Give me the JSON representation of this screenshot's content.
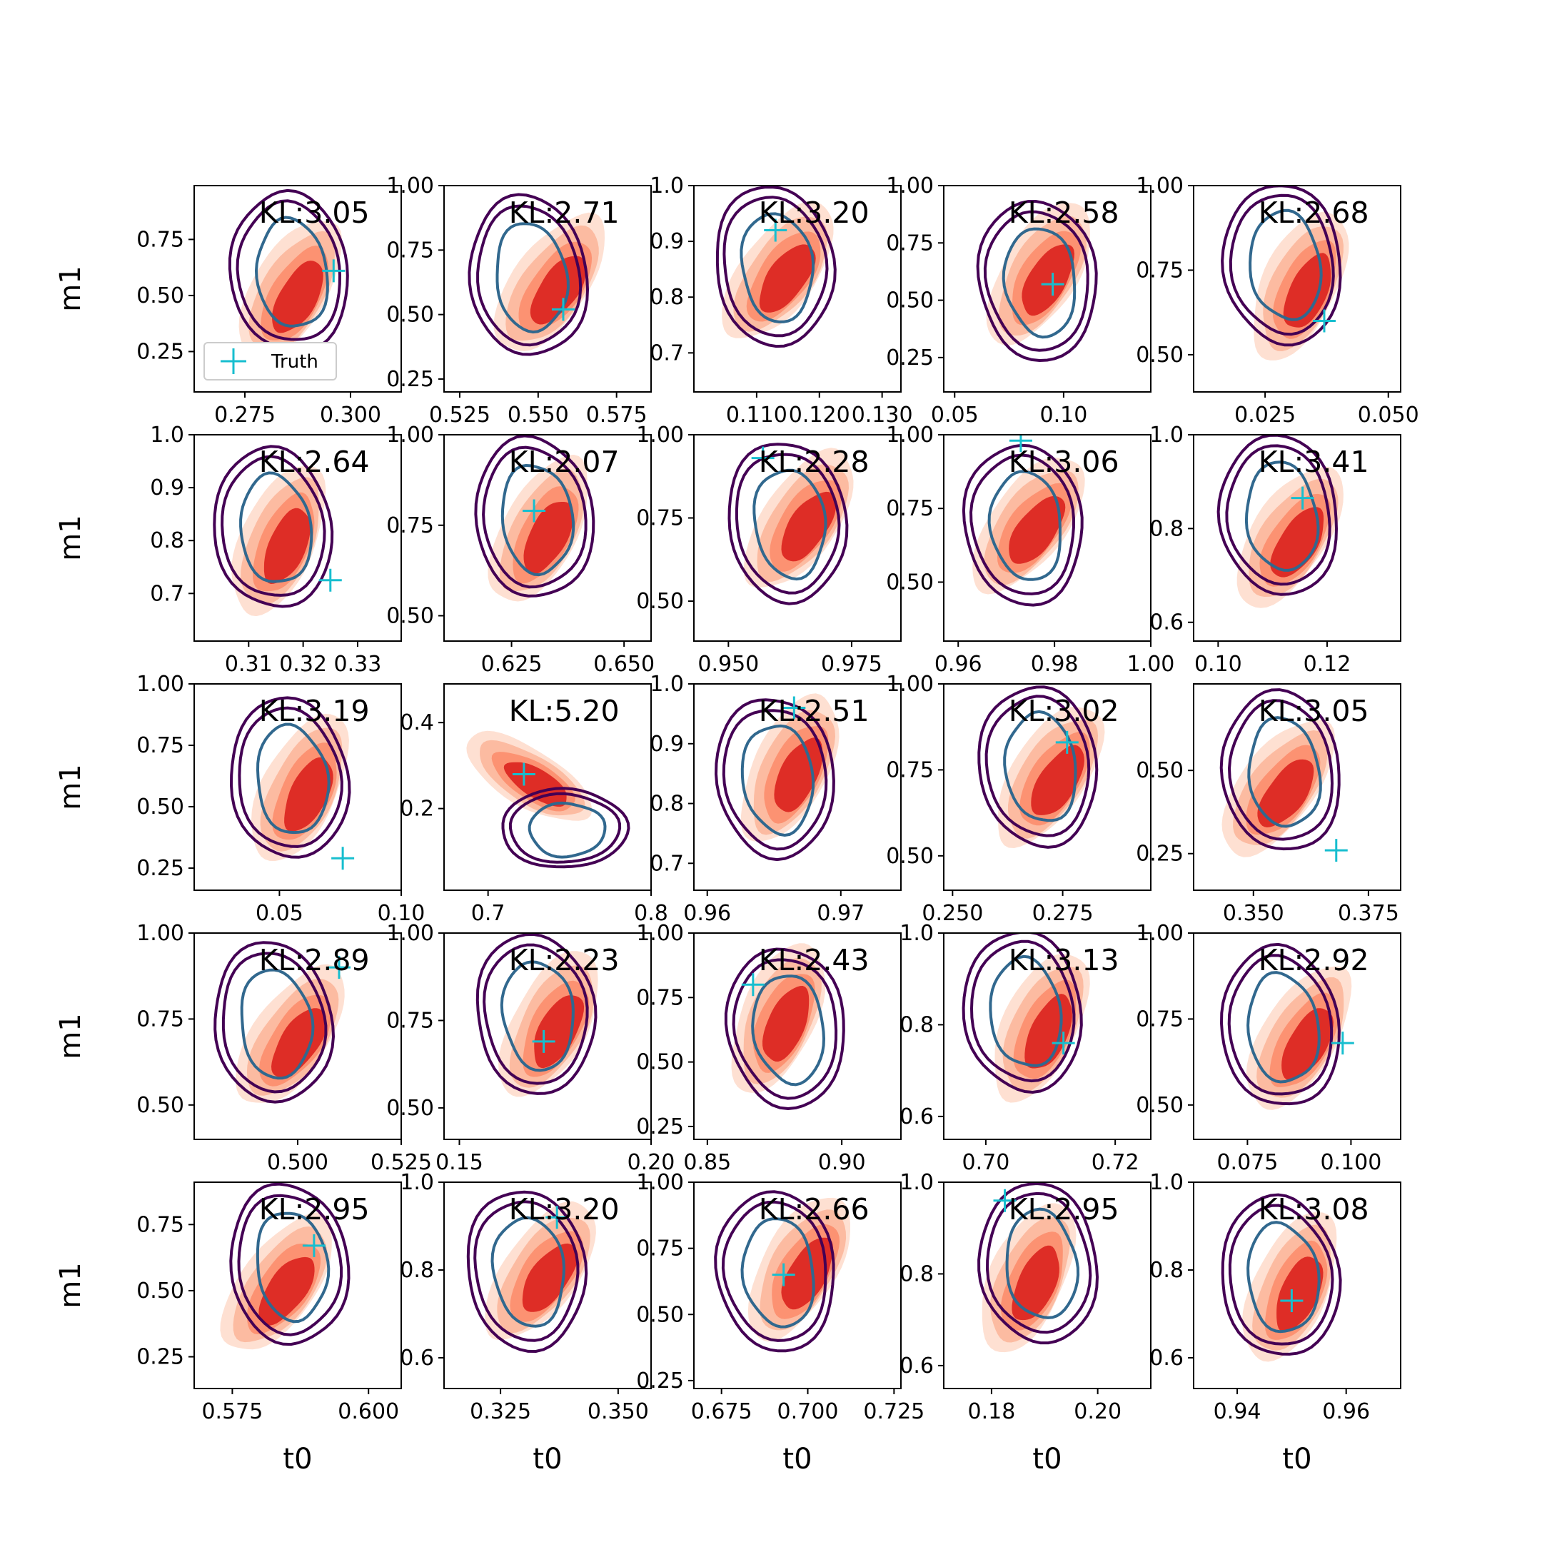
{
  "chart_data": {
    "type": "contour",
    "grid": [
      5,
      5
    ],
    "xlabel": "t0",
    "ylabel": "m1",
    "legend": {
      "label": "Truth",
      "placement": "lower-left of first panel"
    },
    "colors": {
      "fill_levels": [
        "#fee0d2",
        "#fcbba1",
        "#fc9272",
        "#de2d26",
        "#d32020"
      ],
      "contour_outer": "#440154",
      "contour_inner": "#31688e",
      "truth": "#17becf"
    },
    "panels": [
      {
        "kl": "KL:3.05",
        "truth": [
          0.296,
          0.61
        ],
        "xlim": [
          0.263,
          0.312
        ],
        "ylim": [
          0.07,
          0.99
        ],
        "xticks": [
          "0.275",
          "0.300"
        ],
        "yticks": [
          "0.25",
          "0.50",
          "0.75"
        ],
        "yvals": [
          0.25,
          0.5,
          0.75
        ],
        "legend": true
      },
      {
        "kl": "KL:2.71",
        "truth": [
          0.558,
          0.52
        ],
        "xlim": [
          0.52,
          0.586
        ],
        "ylim": [
          0.2,
          1.0
        ],
        "xticks": [
          "0.525",
          "0.550",
          "0.575"
        ],
        "yticks": [
          "0.25",
          "0.50",
          "0.75",
          "1.00"
        ],
        "yvals": [
          0.25,
          0.5,
          0.75,
          1.0
        ]
      },
      {
        "kl": "KL:3.20",
        "truth": [
          0.113,
          0.92
        ],
        "xlim": [
          0.1,
          0.133
        ],
        "ylim": [
          0.63,
          1.0
        ],
        "xticks": [
          "0.110",
          "0.120",
          "0.130"
        ],
        "yticks": [
          "0.7",
          "0.8",
          "0.9",
          "1.0"
        ],
        "yvals": [
          0.7,
          0.8,
          0.9,
          1.0
        ]
      },
      {
        "kl": "KL:2.58",
        "truth": [
          0.095,
          0.57
        ],
        "xlim": [
          0.045,
          0.14
        ],
        "ylim": [
          0.1,
          1.0
        ],
        "xticks": [
          "0.05",
          "0.10"
        ],
        "yticks": [
          "0.25",
          "0.50",
          "0.75",
          "1.00"
        ],
        "yvals": [
          0.25,
          0.5,
          0.75,
          1.0
        ]
      },
      {
        "kl": "KL:2.68",
        "truth": [
          0.037,
          0.6
        ],
        "xlim": [
          0.0105,
          0.0525
        ],
        "ylim": [
          0.39,
          1.0
        ],
        "xticks": [
          "0.025",
          "0.050"
        ],
        "yticks": [
          "0.50",
          "0.75",
          "1.00"
        ],
        "yvals": [
          0.5,
          0.75,
          1.0
        ]
      },
      {
        "kl": "KL:2.64",
        "truth": [
          0.325,
          0.725
        ],
        "xlim": [
          0.3,
          0.338
        ],
        "ylim": [
          0.61,
          1.0
        ],
        "xticks": [
          "0.31",
          "0.32",
          "0.33"
        ],
        "yticks": [
          "0.7",
          "0.8",
          "0.9",
          "1.0"
        ],
        "yvals": [
          0.7,
          0.8,
          0.9,
          1.0
        ]
      },
      {
        "kl": "KL:2.07",
        "truth": [
          0.63,
          0.79
        ],
        "xlim": [
          0.61,
          0.656
        ],
        "ylim": [
          0.43,
          1.0
        ],
        "xticks": [
          "0.625",
          "0.650"
        ],
        "yticks": [
          "0.50",
          "0.75",
          "1.00"
        ],
        "yvals": [
          0.5,
          0.75,
          1.0
        ]
      },
      {
        "kl": "KL:2.28",
        "truth": [
          0.957,
          0.93
        ],
        "xlim": [
          0.943,
          0.985
        ],
        "ylim": [
          0.38,
          1.0
        ],
        "xticks": [
          "0.950",
          "0.975"
        ],
        "yticks": [
          "0.50",
          "0.75",
          "1.00"
        ],
        "yvals": [
          0.5,
          0.75,
          1.0
        ]
      },
      {
        "kl": "KL:3.06",
        "truth": [
          0.973,
          0.98
        ],
        "xlim": [
          0.957,
          1.0
        ],
        "ylim": [
          0.3,
          1.0
        ],
        "xticks": [
          "0.96",
          "0.98",
          "1.00"
        ],
        "yticks": [
          "0.50",
          "0.75",
          "1.00"
        ],
        "yvals": [
          0.5,
          0.75,
          1.0
        ]
      },
      {
        "kl": "KL:3.41",
        "truth": [
          0.1155,
          0.865
        ],
        "xlim": [
          0.0955,
          0.1335
        ],
        "ylim": [
          0.56,
          1.0
        ],
        "xticks": [
          "0.10",
          "0.12"
        ],
        "yticks": [
          "0.6",
          "0.8",
          "1.0"
        ],
        "yvals": [
          0.6,
          0.8,
          1.0
        ]
      },
      {
        "kl": "KL:3.19",
        "truth": [
          0.076,
          0.29
        ],
        "xlim": [
          0.015,
          0.1
        ],
        "ylim": [
          0.16,
          1.0
        ],
        "xticks": [
          "0.05",
          "0.10"
        ],
        "yticks": [
          "0.25",
          "0.50",
          "0.75",
          "1.00"
        ],
        "yvals": [
          0.25,
          0.5,
          0.75,
          1.0
        ]
      },
      {
        "kl": "KL:5.20",
        "truth": [
          0.722,
          0.28
        ],
        "xlim": [
          0.673,
          0.8
        ],
        "ylim": [
          0.01,
          0.49
        ],
        "xticks": [
          "0.7",
          "0.8"
        ],
        "yticks": [
          "0.2",
          "0.4"
        ],
        "yvals": [
          0.2,
          0.4
        ]
      },
      {
        "kl": "KL:2.51",
        "truth": [
          0.9665,
          0.96
        ],
        "xlim": [
          0.959,
          0.9745
        ],
        "ylim": [
          0.655,
          1.0
        ],
        "xticks": [
          "0.96",
          "0.97"
        ],
        "yticks": [
          "0.7",
          "0.8",
          "0.9",
          "1.0"
        ],
        "yvals": [
          0.7,
          0.8,
          0.9,
          1.0
        ]
      },
      {
        "kl": "KL:3.02",
        "truth": [
          0.276,
          0.83
        ],
        "xlim": [
          0.248,
          0.295
        ],
        "ylim": [
          0.4,
          1.0
        ],
        "xticks": [
          "0.250",
          "0.275"
        ],
        "yticks": [
          "0.50",
          "0.75",
          "1.00"
        ],
        "yvals": [
          0.5,
          0.75,
          1.0
        ]
      },
      {
        "kl": "KL:3.05",
        "truth": [
          0.368,
          0.26
        ],
        "xlim": [
          0.337,
          0.382
        ],
        "ylim": [
          0.14,
          0.76
        ],
        "xticks": [
          "0.350",
          "0.375"
        ],
        "yticks": [
          "0.25",
          "0.50"
        ],
        "yvals": [
          0.25,
          0.5
        ]
      },
      {
        "kl": "KL:2.89",
        "truth": [
          0.51,
          0.9
        ],
        "xlim": [
          0.475,
          0.525
        ],
        "ylim": [
          0.4,
          1.0
        ],
        "xticks": [
          "0.500",
          "0.525"
        ],
        "yticks": [
          "0.50",
          "0.75",
          "1.00"
        ],
        "yvals": [
          0.5,
          0.75,
          1.0
        ]
      },
      {
        "kl": "KL:2.23",
        "truth": [
          0.172,
          0.69
        ],
        "xlim": [
          0.146,
          0.2
        ],
        "ylim": [
          0.41,
          1.0
        ],
        "xticks": [
          "0.15",
          "0.20"
        ],
        "yticks": [
          "0.50",
          "0.75",
          "1.00"
        ],
        "yvals": [
          0.5,
          0.75,
          1.0
        ]
      },
      {
        "kl": "KL:2.43",
        "truth": [
          0.867,
          0.8
        ],
        "xlim": [
          0.845,
          0.922
        ],
        "ylim": [
          0.2,
          1.0
        ],
        "xticks": [
          "0.85",
          "0.90"
        ],
        "yticks": [
          "0.25",
          "0.50",
          "0.75",
          "1.00"
        ],
        "yvals": [
          0.25,
          0.5,
          0.75,
          1.0
        ]
      },
      {
        "kl": "KL:3.13",
        "truth": [
          0.712,
          0.76
        ],
        "xlim": [
          0.6935,
          0.7255
        ],
        "ylim": [
          0.55,
          1.0
        ],
        "xticks": [
          "0.70",
          "0.72"
        ],
        "yticks": [
          "0.6",
          "0.8",
          "1.0"
        ],
        "yvals": [
          0.6,
          0.8,
          1.0
        ]
      },
      {
        "kl": "KL:2.92",
        "truth": [
          0.098,
          0.68
        ],
        "xlim": [
          0.062,
          0.112
        ],
        "ylim": [
          0.4,
          1.0
        ],
        "xticks": [
          "0.075",
          "0.100"
        ],
        "yticks": [
          "0.50",
          "0.75",
          "1.00"
        ],
        "yvals": [
          0.5,
          0.75,
          1.0
        ]
      },
      {
        "kl": "KL:2.95",
        "truth": [
          0.59,
          0.67
        ],
        "xlim": [
          0.568,
          0.606
        ],
        "ylim": [
          0.13,
          0.91
        ],
        "xticks": [
          "0.575",
          "0.600"
        ],
        "yticks": [
          "0.25",
          "0.50",
          "0.75"
        ],
        "yvals": [
          0.25,
          0.5,
          0.75
        ]
      },
      {
        "kl": "KL:3.20",
        "truth": [
          0.337,
          0.92
        ],
        "xlim": [
          0.313,
          0.357
        ],
        "ylim": [
          0.53,
          1.0
        ],
        "xticks": [
          "0.325",
          "0.350"
        ],
        "yticks": [
          "0.6",
          "0.8",
          "1.0"
        ],
        "yvals": [
          0.6,
          0.8,
          1.0
        ]
      },
      {
        "kl": "KL:2.66",
        "truth": [
          0.693,
          0.65
        ],
        "xlim": [
          0.667,
          0.727
        ],
        "ylim": [
          0.22,
          1.0
        ],
        "xticks": [
          "0.675",
          "0.700",
          "0.725"
        ],
        "yticks": [
          "0.25",
          "0.50",
          "0.75",
          "1.00"
        ],
        "yvals": [
          0.25,
          0.5,
          0.75,
          1.0
        ]
      },
      {
        "kl": "KL:2.95",
        "truth": [
          0.1825,
          0.96
        ],
        "xlim": [
          0.171,
          0.21
        ],
        "ylim": [
          0.55,
          1.0
        ],
        "xticks": [
          "0.18",
          "0.20"
        ],
        "yticks": [
          "0.6",
          "0.8",
          "1.0"
        ],
        "yvals": [
          0.6,
          0.8,
          1.0
        ]
      },
      {
        "kl": "KL:3.08",
        "truth": [
          0.95,
          0.73
        ],
        "xlim": [
          0.932,
          0.97
        ],
        "ylim": [
          0.53,
          1.0
        ],
        "xticks": [
          "0.94",
          "0.96"
        ],
        "yticks": [
          "0.6",
          "0.8",
          "1.0"
        ],
        "yvals": [
          0.6,
          0.8,
          1.0
        ]
      }
    ]
  }
}
